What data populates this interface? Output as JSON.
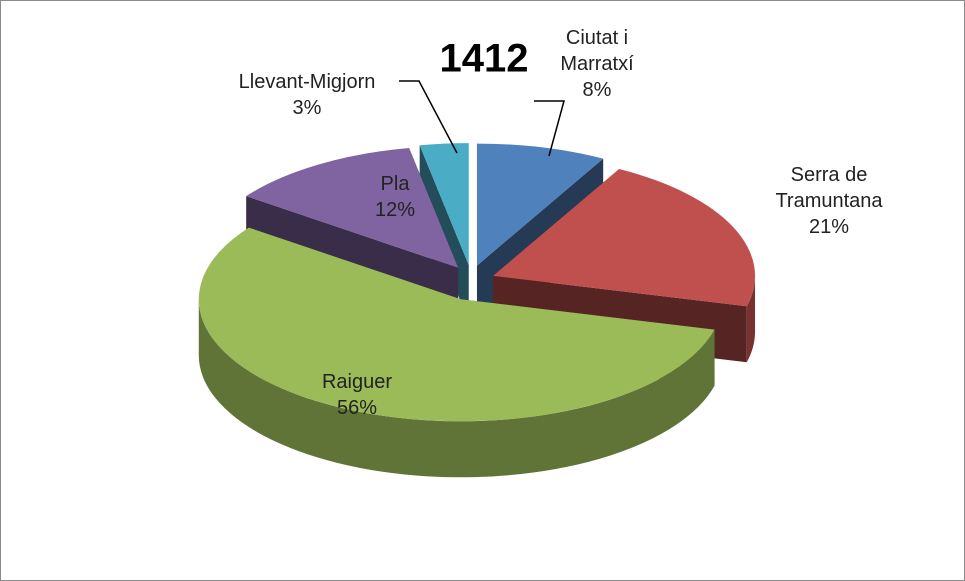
{
  "chart_data": {
    "type": "pie3d",
    "title": "1412",
    "categories": [
      "Ciutat i Marratxí",
      "Serra de Tramuntana",
      "Raiguer",
      "Pla",
      "Llevant-Migjorn"
    ],
    "values": [
      8,
      21,
      56,
      12,
      3
    ],
    "value_labels": [
      "8%",
      "21%",
      "56%",
      "12%",
      "3%"
    ],
    "colors": [
      "#4f81bd",
      "#c0504d",
      "#9bbb59",
      "#8064a2",
      "#4bacc6"
    ]
  }
}
